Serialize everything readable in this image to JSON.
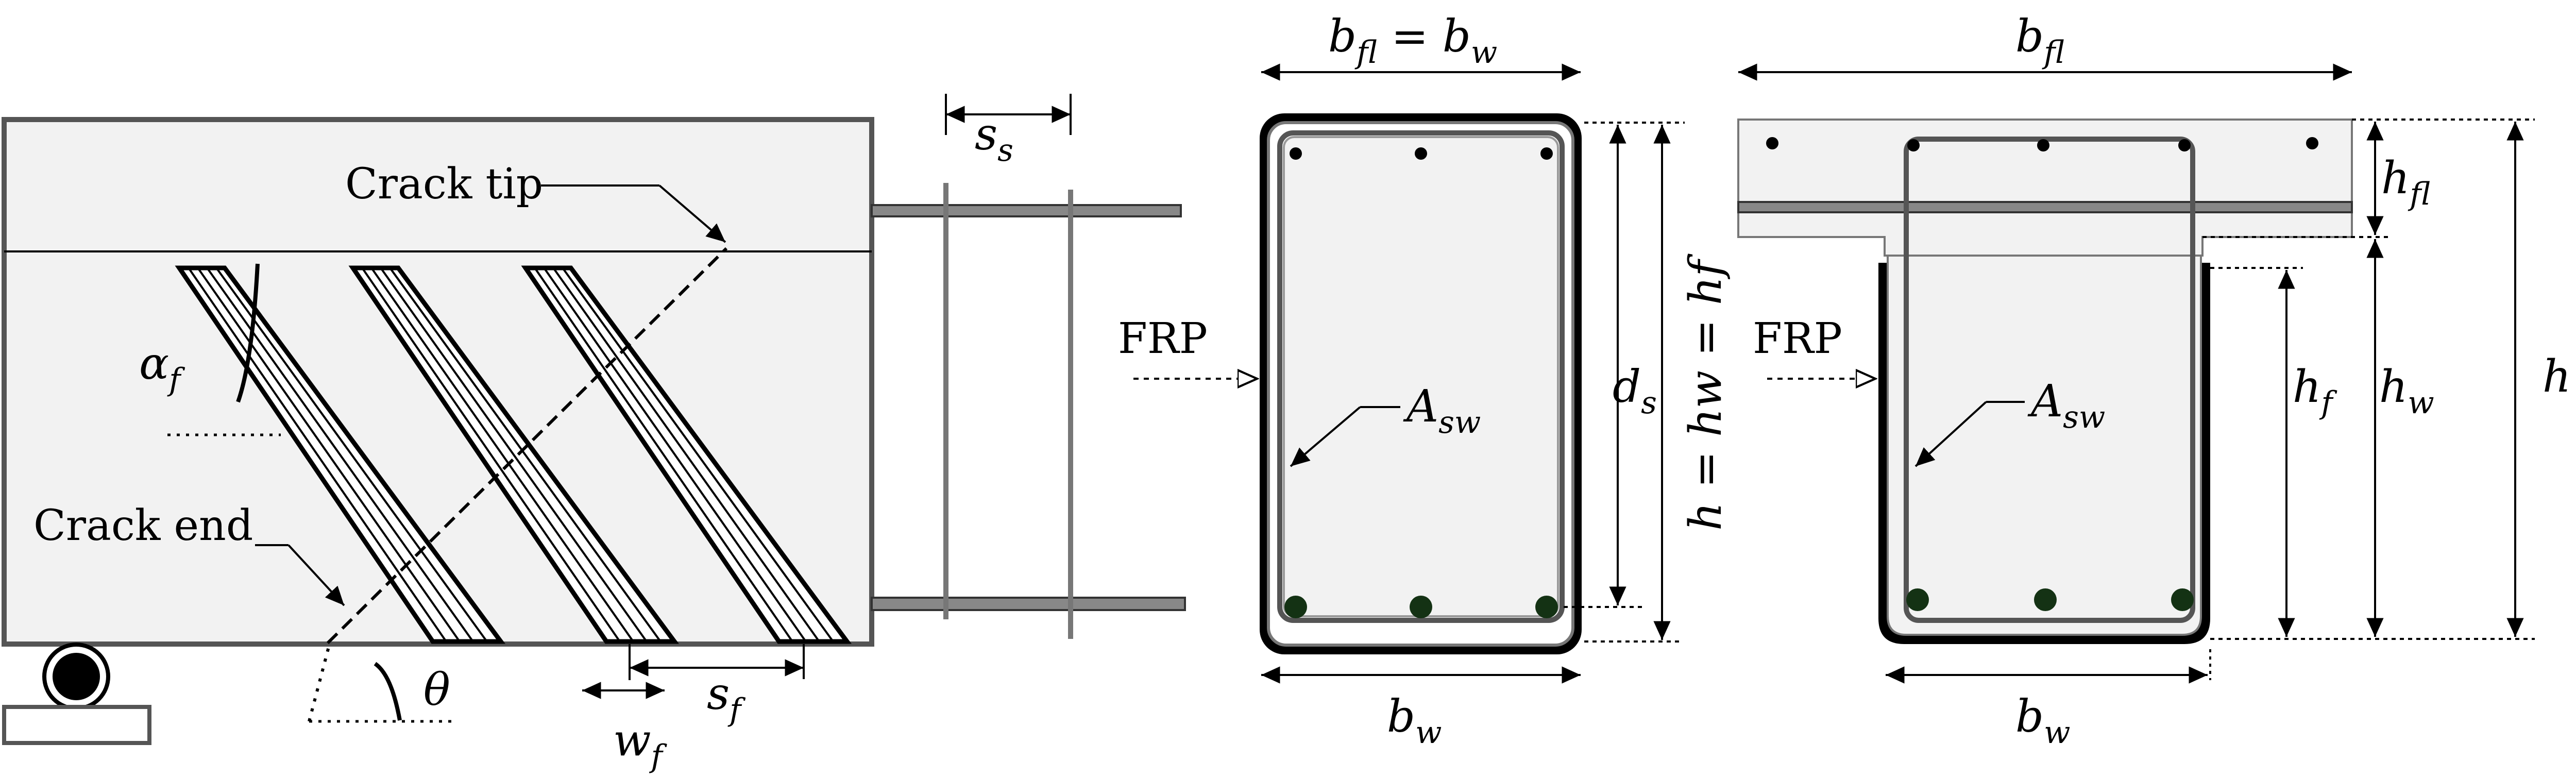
{
  "labels": {
    "crack_tip": "Crack tip",
    "crack_end": "Crack end",
    "frp_rect": "FRP",
    "frp_tee": "FRP"
  },
  "symbols": {
    "alpha_f": {
      "base": "α",
      "sub": "f"
    },
    "theta": "θ",
    "w_f": {
      "base": "w",
      "sub": "f"
    },
    "s_f": {
      "base": "s",
      "sub": "f"
    },
    "s_s": {
      "base": "s",
      "sub": "s"
    },
    "rect_top_width": {
      "b1": "b",
      "s1": "fl",
      "eq": " = ",
      "b2": "b",
      "s2": "w"
    },
    "rect_bottom_width": {
      "base": "b",
      "sub": "w"
    },
    "rect_A_sw": {
      "base": "A",
      "sub": "sw"
    },
    "rect_d_s": {
      "base": "d",
      "sub": "s"
    },
    "rect_height": "h = hw = hf",
    "tee_top_width": {
      "base": "b",
      "sub": "fl"
    },
    "tee_bottom_width": {
      "base": "b",
      "sub": "w"
    },
    "tee_A_sw": {
      "base": "A",
      "sub": "sw"
    },
    "tee_h_fl": {
      "base": "h",
      "sub": "fl"
    },
    "tee_h_f": {
      "base": "h",
      "sub": "f"
    },
    "tee_h_w": {
      "base": "h",
      "sub": "w"
    },
    "tee_h": "h"
  }
}
